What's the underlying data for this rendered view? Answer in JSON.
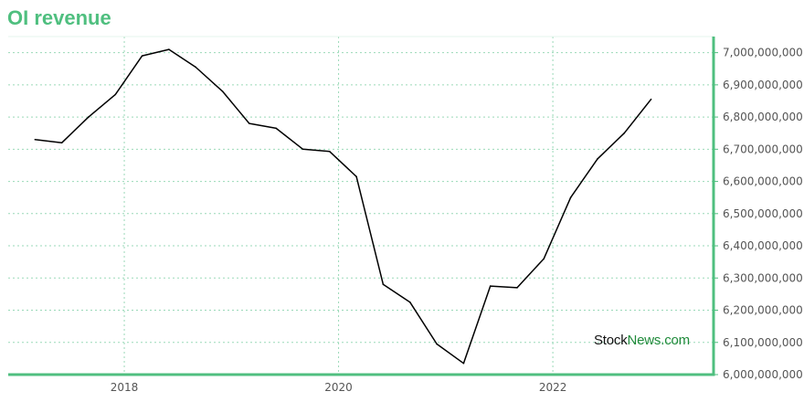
{
  "header": {
    "title": "OI revenue"
  },
  "watermark": {
    "part1": "Stock",
    "part2": "News.com"
  },
  "colors": {
    "title": "#4fbf7f",
    "axis": "#4fbf7f",
    "grid": "#9ad9b8",
    "line": "#000000"
  },
  "chart_data": {
    "type": "line",
    "title": "OI revenue",
    "xlabel": "",
    "ylabel": "",
    "grid": true,
    "y_axis_side": "right",
    "xlim": [
      "2016-12",
      "2023-07"
    ],
    "ylim": [
      6000000000,
      7050000000
    ],
    "x_ticks": [
      "2018",
      "2020",
      "2022"
    ],
    "y_ticks": [
      "6,000,000,000",
      "6,100,000,000",
      "6,200,000,000",
      "6,300,000,000",
      "6,400,000,000",
      "6,500,000,000",
      "6,600,000,000",
      "6,700,000,000",
      "6,800,000,000",
      "6,900,000,000",
      "7,000,000,000"
    ],
    "series": [
      {
        "x": [
          "2017-03",
          "2017-06",
          "2017-09",
          "2017-12",
          "2018-03",
          "2018-06",
          "2018-09",
          "2018-12",
          "2019-03",
          "2019-06",
          "2019-09",
          "2019-12",
          "2020-03",
          "2020-06",
          "2020-09",
          "2020-12",
          "2021-03",
          "2021-06",
          "2021-09",
          "2021-12",
          "2022-03",
          "2022-06",
          "2022-09",
          "2022-12"
        ],
        "values": [
          6730000000,
          6720000000,
          6800000000,
          6870000000,
          6990000000,
          7010000000,
          6955000000,
          6880000000,
          6780000000,
          6765000000,
          6700000000,
          6693000000,
          6615000000,
          6280000000,
          6225000000,
          6095000000,
          6035000000,
          6275000000,
          6270000000,
          6360000000,
          6550000000,
          6670000000,
          6750000000,
          6855000000
        ]
      }
    ]
  }
}
